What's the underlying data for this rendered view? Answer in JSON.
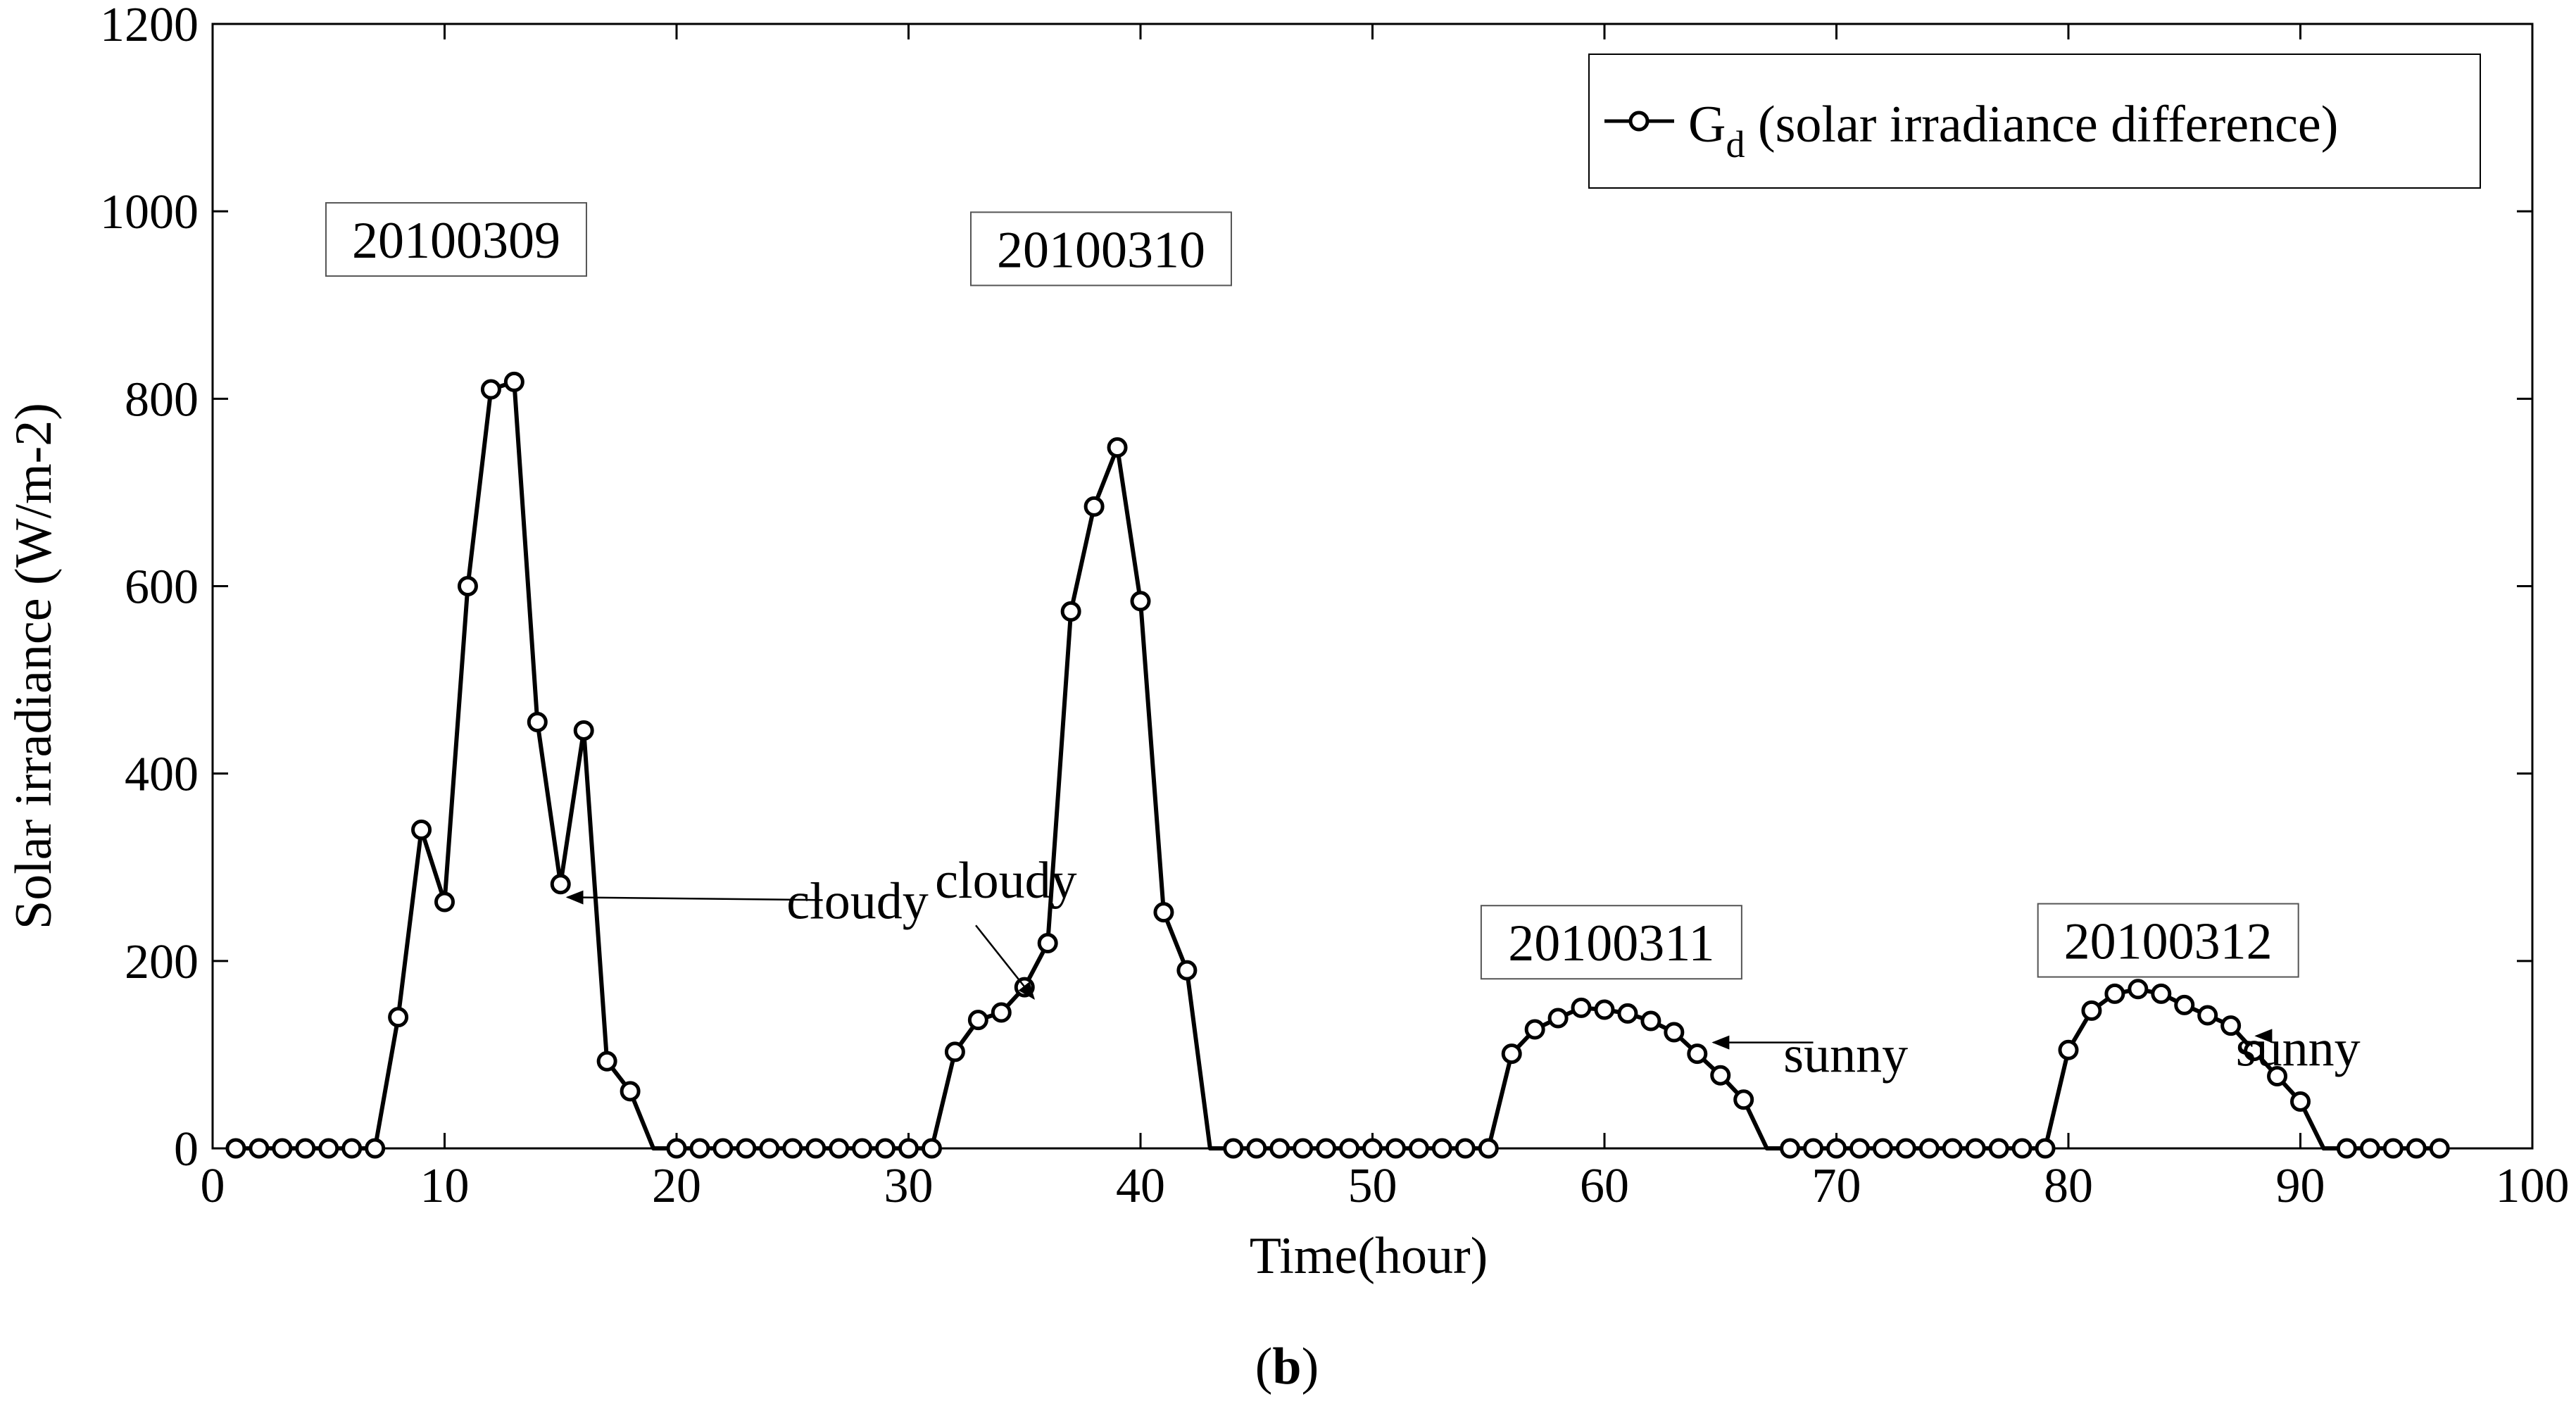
{
  "chart_data": {
    "type": "line",
    "xlabel": "Time(hour)",
    "ylabel": "Solar irradiance (W/m-2)",
    "xlim": [
      0,
      100
    ],
    "ylim": [
      0,
      1200
    ],
    "xticks": [
      0,
      10,
      20,
      30,
      40,
      50,
      60,
      70,
      80,
      90,
      100
    ],
    "yticks": [
      0,
      200,
      400,
      600,
      800,
      1000,
      1200
    ],
    "grid": false,
    "legend_position": "top-right",
    "legend": {
      "main": "G",
      "subscript": "d",
      "rest": " (solar irradiance difference)"
    },
    "panel_label": {
      "open": "(",
      "letter": "b",
      "close": ")"
    },
    "series": [
      {
        "name": "Gd (solar irradiance difference)",
        "color": "#000000",
        "marker": "open-circle",
        "x": [
          1,
          2,
          3,
          4,
          5,
          6,
          7,
          8,
          9,
          10,
          11,
          12,
          13,
          14,
          15,
          16,
          17,
          18,
          19,
          20,
          21,
          22,
          23,
          24,
          25,
          26,
          27,
          28,
          29,
          30,
          31,
          32,
          33,
          34,
          35,
          36,
          37,
          38,
          39,
          40,
          41,
          42,
          43,
          44,
          45,
          46,
          47,
          48,
          49,
          50,
          51,
          52,
          53,
          54,
          55,
          56,
          57,
          58,
          59,
          60,
          61,
          62,
          63,
          64,
          65,
          66,
          67,
          68,
          69,
          70,
          71,
          72,
          73,
          74,
          75,
          76,
          77,
          78,
          79,
          80,
          81,
          82,
          83,
          84,
          85,
          86,
          87,
          88,
          89,
          90,
          91,
          92,
          93,
          94,
          95,
          96
        ],
        "y": [
          0,
          0,
          0,
          0,
          0,
          0,
          0,
          140,
          340,
          263,
          600,
          810,
          818,
          455,
          282,
          446,
          93,
          61,
          0,
          0,
          0,
          0,
          0,
          0,
          0,
          0,
          0,
          0,
          0,
          0,
          0,
          103,
          137,
          145,
          172,
          219,
          573,
          685,
          748,
          584,
          252,
          190,
          0,
          0,
          0,
          0,
          0,
          0,
          0,
          0,
          0,
          0,
          0,
          0,
          0,
          101,
          127,
          139,
          150,
          148,
          144,
          136,
          124,
          101,
          78,
          52,
          0,
          0,
          0,
          0,
          0,
          0,
          0,
          0,
          0,
          0,
          0,
          0,
          0,
          105,
          147,
          165,
          170,
          165,
          153,
          142,
          131,
          104,
          77,
          50,
          0,
          0,
          0,
          0,
          0,
          0
        ],
        "markers_hidden_x": [
          19,
          43,
          67,
          91
        ]
      }
    ],
    "date_labels": [
      {
        "text": "20100309",
        "x": 10.5,
        "y": 970
      },
      {
        "text": "20100310",
        "x": 38.3,
        "y": 960
      },
      {
        "text": "20100311",
        "x": 60.3,
        "y": 220
      },
      {
        "text": "20100312",
        "x": 84.3,
        "y": 222
      }
    ],
    "annotations": [
      {
        "text": "cloudy",
        "text_x": 27.8,
        "text_y": 265,
        "arrow_from": [
          26.3,
          265
        ],
        "arrow_to": [
          15.3,
          268
        ]
      },
      {
        "text": "cloudy",
        "text_x": 34.2,
        "text_y": 287,
        "arrow_from": [
          32.9,
          238
        ],
        "arrow_to": [
          35.4,
          160
        ]
      },
      {
        "text": "sunny",
        "text_x": 70.4,
        "text_y": 101,
        "arrow_from": [
          69.0,
          113
        ],
        "arrow_to": [
          64.7,
          113
        ]
      },
      {
        "text": "sunny",
        "text_x": 89.9,
        "text_y": 108,
        "arrow_from": [
          88.6,
          120
        ],
        "arrow_to": [
          88.1,
          120
        ]
      }
    ]
  }
}
